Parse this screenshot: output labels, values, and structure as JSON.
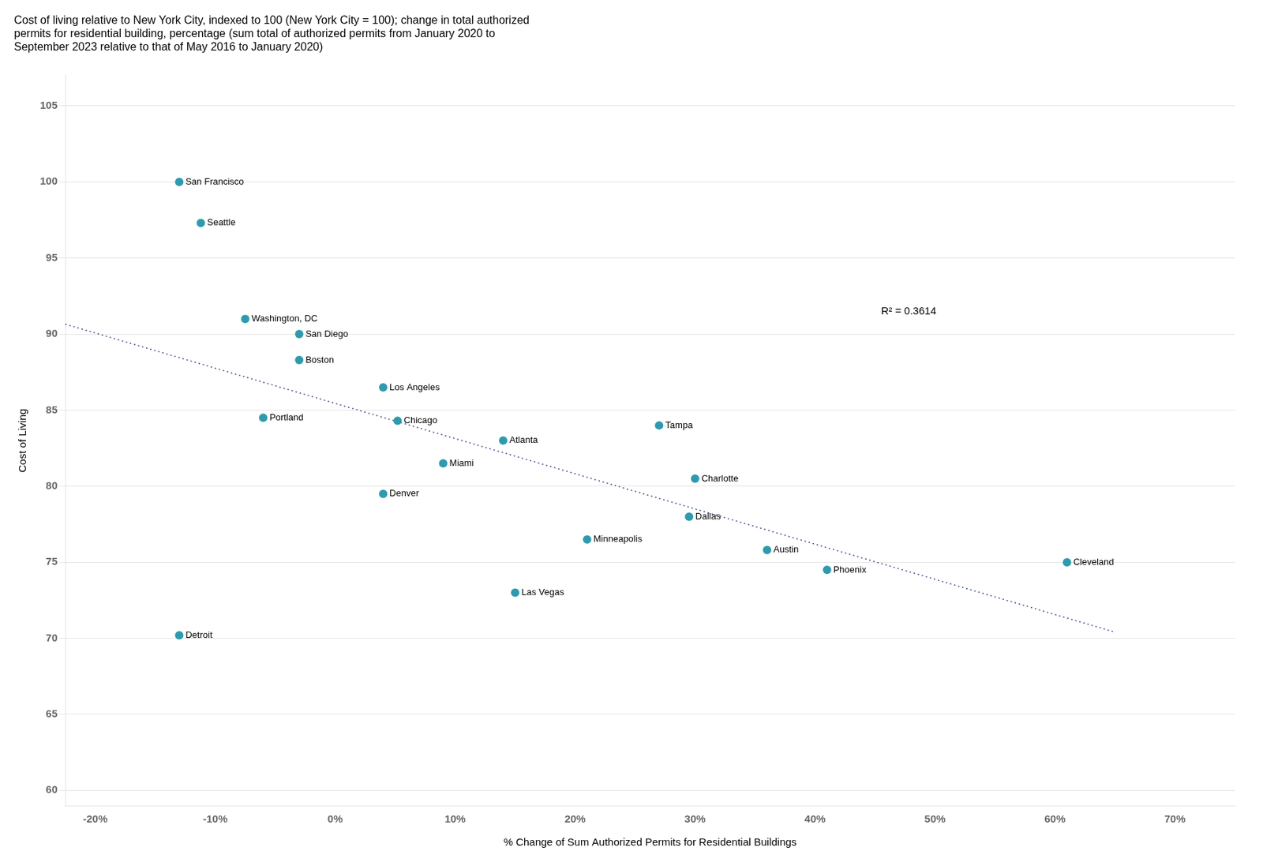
{
  "chart_data": {
    "type": "scatter",
    "title": "Cost of living relative to New York City, indexed to 100 (New York City = 100); change in total authorized\npermits for residential building, percentage (sum total of authorized permits from January 2020 to\nSeptember 2023 relative to that of May 2016 to January 2020)",
    "xlabel": "% Change of Sum Authorized Permits for Residential Buildings",
    "ylabel": "Cost of Living",
    "series": [
      {
        "type": "scatter",
        "color": "#2E9BAD",
        "marker": "circle",
        "x": [
          -0.13,
          -0.112,
          -0.075,
          -0.03,
          -0.03,
          -0.06,
          0.04,
          0.052,
          0.09,
          0.04,
          0.14,
          0.27,
          0.21,
          0.3,
          0.295,
          0.36,
          0.41,
          0.15,
          0.61,
          -0.13
        ],
        "values": [
          100.0,
          97.3,
          91.0,
          90.0,
          88.3,
          84.5,
          86.5,
          84.3,
          81.5,
          79.5,
          83.0,
          84.0,
          76.5,
          80.5,
          78.0,
          75.8,
          74.5,
          73.0,
          75.0,
          70.2
        ],
        "labels": [
          "San Francisco",
          "Seattle",
          "Washington, DC",
          "San Diego",
          "Boston",
          "Portland",
          "Los Angeles",
          "Chicago",
          "Miami",
          "Denver",
          "Atlanta",
          "Tampa",
          "Minneapolis",
          "Charlotte",
          "Dallas",
          "Austin",
          "Phoenix",
          "Las Vegas",
          "Cleveland",
          "Detroit"
        ]
      },
      {
        "type": "line",
        "color": "#3A4A8A",
        "line_style": "dotted",
        "x": [
          -0.225,
          0.65
        ],
        "values": [
          90.651,
          70.409
        ]
      }
    ],
    "annotations": [
      {
        "text": "R² = 0.3614",
        "x": 0.455,
        "y": 91.5
      }
    ],
    "xlim": [
      -0.225,
      0.75
    ],
    "xticks": [
      {
        "value": -0.2,
        "label": "-20%"
      },
      {
        "value": -0.1,
        "label": "-10%"
      },
      {
        "value": 0.0,
        "label": "0%"
      },
      {
        "value": 0.1,
        "label": "10%"
      },
      {
        "value": 0.2,
        "label": "20%"
      },
      {
        "value": 0.3,
        "label": "30%"
      },
      {
        "value": 0.4,
        "label": "40%"
      },
      {
        "value": 0.5,
        "label": "50%"
      },
      {
        "value": 0.6,
        "label": "60%"
      },
      {
        "value": 0.7,
        "label": "70%"
      }
    ],
    "ylim": [
      59,
      107
    ],
    "yticks": [
      60,
      65,
      70,
      75,
      80,
      85,
      90,
      95,
      100,
      105
    ],
    "grid": "y"
  }
}
